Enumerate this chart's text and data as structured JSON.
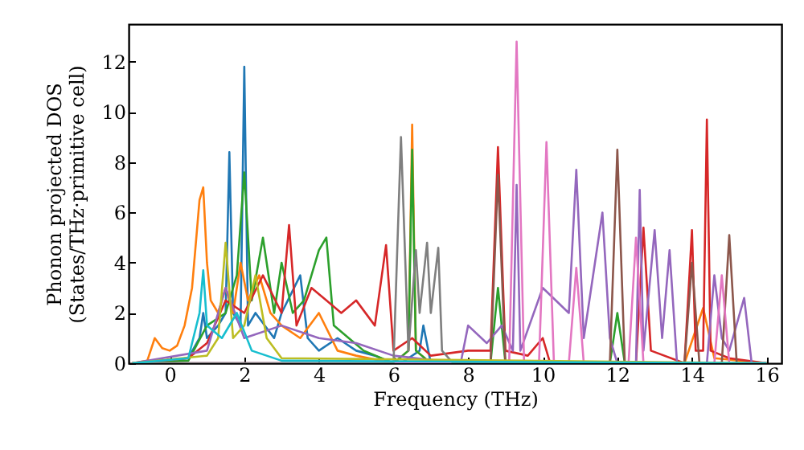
{
  "chart_data": {
    "type": "line",
    "xlabel": "Frequency (THz)",
    "ylabel": "Phonon projected DOS\n(States/THz·primitive cell)",
    "xlim": [
      -1.1,
      16.4
    ],
    "ylim": [
      0,
      13.5
    ],
    "xticks": [
      0,
      2,
      4,
      6,
      8,
      10,
      12,
      14,
      16
    ],
    "yticks": [
      0,
      2,
      4,
      6,
      8,
      10,
      12
    ],
    "grid": false,
    "series": [
      {
        "color": "#1f77b4",
        "x": [
          -1,
          0.5,
          0.8,
          0.9,
          1.0,
          1.3,
          1.5,
          1.6,
          1.7,
          1.9,
          2.0,
          2.1,
          2.3,
          2.8,
          3.0,
          3.5,
          3.7,
          4.0,
          4.5,
          5,
          5.5,
          6,
          6.2,
          6.7,
          6.8,
          7,
          8,
          16
        ],
        "values": [
          0,
          0.2,
          1,
          2,
          1,
          1.5,
          2,
          8.4,
          2,
          1.5,
          11.8,
          1.5,
          2,
          1,
          2,
          3.5,
          1,
          0.5,
          1,
          0.5,
          0.3,
          0,
          0,
          0.5,
          1.5,
          0,
          0,
          0
        ]
      },
      {
        "color": "#ff7f0e",
        "x": [
          -1,
          -0.6,
          -0.4,
          -0.2,
          0,
          0.2,
          0.4,
          0.6,
          0.8,
          0.9,
          1.0,
          1.1,
          1.3,
          1.5,
          1.7,
          1.9,
          2.1,
          2.4,
          2.7,
          3.0,
          3.5,
          4.0,
          4.5,
          5,
          6,
          6.4,
          6.5,
          6.6,
          7,
          13.8,
          14.3,
          14.6,
          16
        ],
        "values": [
          0,
          0.1,
          1.0,
          0.6,
          0.5,
          0.7,
          1.5,
          3.0,
          6.5,
          7.0,
          4.0,
          2.5,
          2.0,
          3.0,
          2.0,
          4.0,
          2.5,
          3.5,
          2.0,
          1.5,
          1.0,
          2.0,
          0.5,
          0.3,
          0,
          0.5,
          9.5,
          0.5,
          0,
          0,
          2.2,
          0.2,
          0
        ]
      },
      {
        "color": "#2ca02c",
        "x": [
          -1,
          0.5,
          1.0,
          1.5,
          1.8,
          2.0,
          2.2,
          2.5,
          2.8,
          3.0,
          3.3,
          3.6,
          4.0,
          4.2,
          4.4,
          4.8,
          5.2,
          6.0,
          6.4,
          6.5,
          6.6,
          7.0,
          8.6,
          8.8,
          9.0,
          11.8,
          12.0,
          12.2,
          16
        ],
        "values": [
          0,
          0.1,
          1.5,
          2.0,
          3.5,
          7.6,
          2.5,
          5.0,
          2.0,
          4.0,
          2.0,
          2.5,
          4.5,
          5.0,
          1.5,
          1.0,
          0.5,
          0,
          0.5,
          8.5,
          0.5,
          0,
          0,
          3.0,
          0,
          0,
          2.0,
          0,
          0
        ]
      },
      {
        "color": "#d62728",
        "x": [
          -1,
          0.5,
          1.0,
          1.5,
          2.0,
          2.5,
          3.0,
          3.2,
          3.4,
          3.8,
          4.2,
          4.6,
          5.0,
          5.5,
          5.8,
          6.0,
          6.5,
          7.0,
          8.0,
          8.6,
          8.8,
          9.0,
          9.6,
          10.0,
          10.2,
          12.5,
          12.7,
          12.9,
          13.8,
          14.0,
          14.1,
          14.3,
          14.4,
          14.5,
          15,
          16
        ],
        "values": [
          0,
          0.2,
          0.8,
          2.5,
          2.0,
          3.5,
          2.0,
          5.5,
          1.5,
          3.0,
          2.5,
          2.0,
          2.5,
          1.5,
          4.7,
          0.5,
          1.0,
          0.3,
          0.5,
          0.5,
          8.6,
          0.5,
          0.3,
          1.0,
          0,
          0,
          5.4,
          0.5,
          0,
          5.3,
          0.5,
          0.5,
          9.7,
          0.5,
          0.2,
          0
        ]
      },
      {
        "color": "#9467bd",
        "x": [
          -1,
          1.0,
          1.5,
          2.0,
          3.0,
          4.0,
          5.0,
          6.0,
          7.8,
          8.0,
          8.5,
          8.9,
          9.2,
          9.3,
          9.4,
          10.0,
          10.7,
          10.9,
          11.1,
          11.6,
          11.8,
          12.0,
          12.5,
          12.6,
          12.7,
          13.0,
          13.2,
          13.4,
          13.6,
          14.4,
          14.6,
          14.8,
          15.0,
          15.4,
          15.6,
          16
        ],
        "values": [
          0,
          0.5,
          3.0,
          1.0,
          1.5,
          1.0,
          0.8,
          0.3,
          0,
          1.5,
          0.8,
          1.5,
          0.5,
          7.1,
          0.5,
          3.0,
          2.0,
          7.7,
          1.0,
          6.0,
          1.0,
          0,
          0,
          6.9,
          0.5,
          5.3,
          1.0,
          4.5,
          0,
          0,
          3.5,
          1.0,
          0.5,
          2.6,
          0,
          0
        ]
      },
      {
        "color": "#8c564b",
        "x": [
          -1,
          8.6,
          8.8,
          9.0,
          11.8,
          12.0,
          12.2,
          13.8,
          14.0,
          14.2,
          14.8,
          15.0,
          15.2,
          16
        ],
        "values": [
          0,
          0,
          7.5,
          0,
          0,
          8.5,
          0,
          0,
          4.0,
          0,
          0,
          5.1,
          0,
          0
        ]
      },
      {
        "color": "#e377c2",
        "x": [
          -1,
          9.1,
          9.3,
          9.5,
          9.9,
          10.1,
          10.3,
          10.7,
          10.9,
          11.1,
          12.3,
          12.5,
          12.7,
          14.6,
          14.8,
          15.0,
          16
        ],
        "values": [
          0,
          0,
          12.8,
          0,
          0,
          8.8,
          0,
          0,
          3.8,
          0,
          0,
          5.0,
          0,
          0,
          3.5,
          0,
          0
        ]
      },
      {
        "color": "#7f7f7f",
        "x": [
          -1,
          6.0,
          6.2,
          6.4,
          6.6,
          6.7,
          6.9,
          7.0,
          7.2,
          7.3,
          7.6,
          16
        ],
        "values": [
          0,
          0,
          9.0,
          0.5,
          4.5,
          2.0,
          4.8,
          2.0,
          4.6,
          0.5,
          0,
          0
        ]
      },
      {
        "color": "#bcbd22",
        "x": [
          -1,
          1.0,
          1.3,
          1.5,
          1.7,
          2.0,
          2.3,
          2.6,
          3.0,
          16
        ],
        "values": [
          0,
          0.3,
          1.0,
          4.8,
          1.0,
          1.5,
          3.5,
          1.0,
          0.2,
          0
        ]
      },
      {
        "color": "#17becf",
        "x": [
          -1,
          0.5,
          0.8,
          0.9,
          1.0,
          1.4,
          1.8,
          2.2,
          3.0,
          16
        ],
        "values": [
          0,
          0.2,
          2.0,
          3.7,
          1.5,
          1.0,
          2.0,
          0.5,
          0.1,
          0
        ]
      }
    ]
  }
}
